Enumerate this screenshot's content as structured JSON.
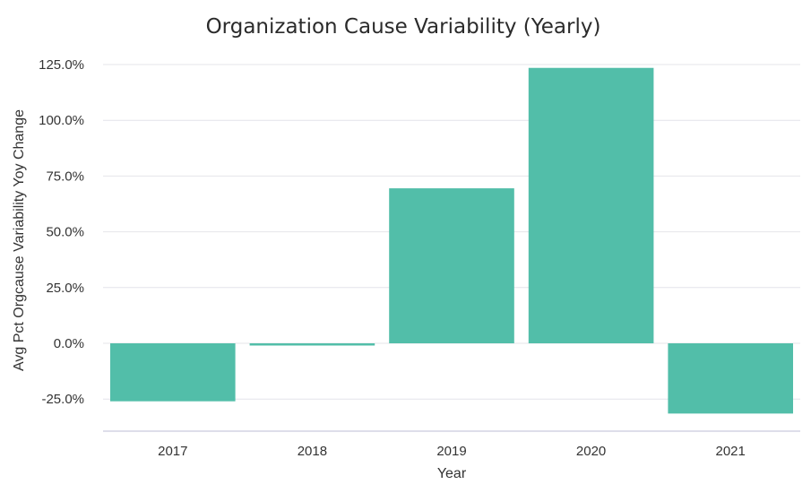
{
  "chart_data": {
    "type": "bar",
    "title": "Organization Cause Variability (Yearly)",
    "xlabel": "Year",
    "ylabel": "Avg Pct Orgcause Variability Yoy Change",
    "categories": [
      "2017",
      "2018",
      "2019",
      "2020",
      "2021"
    ],
    "values": [
      -26.0,
      -1.0,
      69.5,
      123.5,
      -31.5
    ],
    "ylim": [
      -40,
      130
    ],
    "yticks": [
      -25,
      0,
      25,
      50,
      75,
      100,
      125
    ],
    "ytick_labels": [
      "-25.0%",
      "0.0%",
      "25.0%",
      "50.0%",
      "75.0%",
      "100.0%",
      "125.0%"
    ],
    "bar_color": "#52bea9",
    "grid": true
  }
}
